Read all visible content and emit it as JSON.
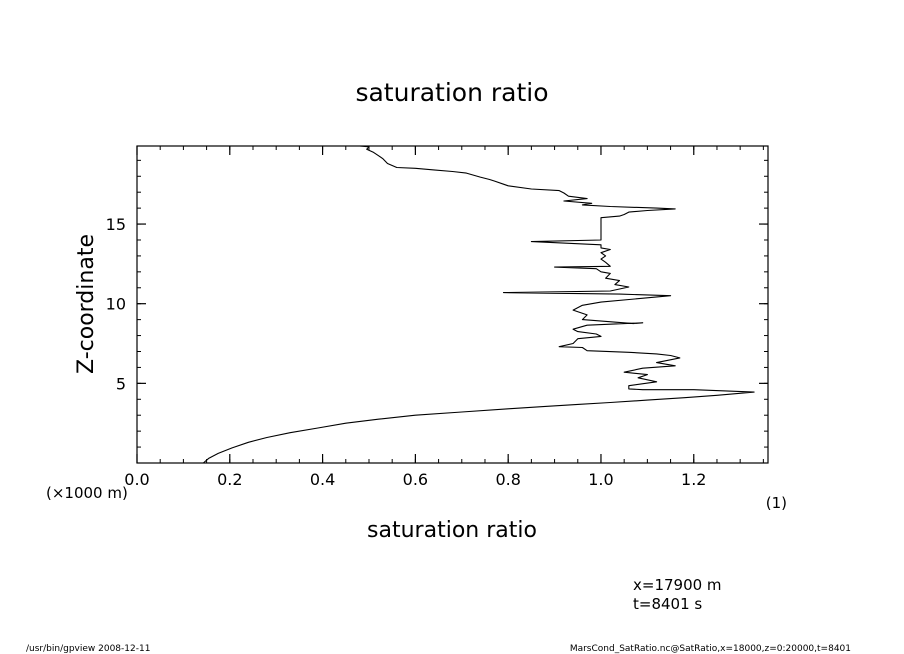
{
  "chart_data": {
    "type": "line",
    "title": "saturation ratio",
    "xlabel": "saturation ratio",
    "ylabel": "Z-coordinate",
    "x_unit": "(1)",
    "y_unit": "(×1000 m)",
    "xlim": [
      0.0,
      1.36
    ],
    "ylim": [
      0.0,
      19.9
    ],
    "x_ticks": [
      0.0,
      0.2,
      0.4,
      0.6,
      0.8,
      1.0,
      1.2
    ],
    "x_tick_labels": [
      "0.0",
      "0.2",
      "0.4",
      "0.6",
      "0.8",
      "1.0",
      "1.2"
    ],
    "y_ticks": [
      5,
      10,
      15
    ],
    "y_tick_labels": [
      "5",
      "10",
      "15"
    ],
    "x_minor_step": 0.05,
    "y_minor_step": 1,
    "grid": false,
    "series": [
      {
        "points": [
          [
            0.143,
            0.0
          ],
          [
            0.155,
            0.3
          ],
          [
            0.175,
            0.6
          ],
          [
            0.205,
            0.95
          ],
          [
            0.24,
            1.3
          ],
          [
            0.28,
            1.6
          ],
          [
            0.33,
            1.9
          ],
          [
            0.39,
            2.2
          ],
          [
            0.45,
            2.5
          ],
          [
            0.52,
            2.75
          ],
          [
            0.6,
            3.0
          ],
          [
            0.7,
            3.2
          ],
          [
            0.8,
            3.4
          ],
          [
            0.88,
            3.55
          ],
          [
            0.95,
            3.68
          ],
          [
            1.02,
            3.8
          ],
          [
            1.1,
            3.95
          ],
          [
            1.18,
            4.1
          ],
          [
            1.25,
            4.25
          ],
          [
            1.33,
            4.45
          ],
          [
            1.2,
            4.6
          ],
          [
            1.09,
            4.6
          ],
          [
            1.06,
            4.65
          ],
          [
            1.06,
            4.85
          ],
          [
            1.12,
            5.1
          ],
          [
            1.08,
            5.35
          ],
          [
            1.1,
            5.55
          ],
          [
            1.05,
            5.7
          ],
          [
            1.09,
            5.95
          ],
          [
            1.16,
            6.1
          ],
          [
            1.12,
            6.3
          ],
          [
            1.17,
            6.6
          ],
          [
            1.15,
            6.75
          ],
          [
            1.12,
            6.85
          ],
          [
            1.06,
            6.95
          ],
          [
            0.97,
            7.05
          ],
          [
            0.96,
            7.25
          ],
          [
            0.91,
            7.3
          ],
          [
            0.94,
            7.5
          ],
          [
            0.95,
            7.8
          ],
          [
            1.0,
            7.95
          ],
          [
            0.99,
            8.1
          ],
          [
            0.95,
            8.25
          ],
          [
            0.94,
            8.4
          ],
          [
            0.97,
            8.65
          ],
          [
            1.09,
            8.8
          ],
          [
            1.07,
            8.75
          ],
          [
            0.96,
            9.0
          ],
          [
            0.97,
            9.3
          ],
          [
            0.94,
            9.6
          ],
          [
            0.96,
            9.9
          ],
          [
            1.0,
            10.1
          ],
          [
            1.15,
            10.5
          ],
          [
            1.04,
            10.6
          ],
          [
            0.79,
            10.7
          ],
          [
            1.02,
            10.8
          ],
          [
            1.06,
            11.05
          ],
          [
            1.03,
            11.2
          ],
          [
            1.04,
            11.45
          ],
          [
            1.01,
            11.6
          ],
          [
            1.02,
            11.9
          ],
          [
            1.0,
            12.0
          ],
          [
            0.99,
            12.2
          ],
          [
            0.9,
            12.3
          ],
          [
            1.02,
            12.35
          ],
          [
            1.01,
            12.6
          ],
          [
            1.0,
            12.8
          ],
          [
            1.01,
            13.0
          ],
          [
            1.0,
            13.2
          ],
          [
            1.02,
            13.4
          ],
          [
            1.0,
            13.5
          ],
          [
            1.0,
            13.7
          ],
          [
            0.85,
            13.9
          ],
          [
            1.0,
            14.0
          ],
          [
            1.0,
            15.4
          ],
          [
            1.04,
            15.5
          ],
          [
            1.05,
            15.6
          ],
          [
            1.06,
            15.75
          ],
          [
            1.1,
            15.85
          ],
          [
            1.16,
            15.95
          ],
          [
            1.12,
            16.0
          ],
          [
            1.02,
            16.1
          ],
          [
            0.96,
            16.2
          ],
          [
            0.98,
            16.3
          ],
          [
            0.92,
            16.45
          ],
          [
            0.97,
            16.6
          ],
          [
            0.93,
            16.75
          ],
          [
            0.92,
            16.95
          ],
          [
            0.91,
            17.1
          ],
          [
            0.85,
            17.2
          ],
          [
            0.8,
            17.4
          ],
          [
            0.79,
            17.5
          ],
          [
            0.77,
            17.7
          ],
          [
            0.76,
            17.8
          ],
          [
            0.74,
            17.95
          ],
          [
            0.71,
            18.2
          ],
          [
            0.68,
            18.3
          ],
          [
            0.64,
            18.4
          ],
          [
            0.6,
            18.5
          ],
          [
            0.56,
            18.55
          ],
          [
            0.54,
            18.8
          ],
          [
            0.53,
            19.1
          ],
          [
            0.52,
            19.3
          ],
          [
            0.51,
            19.5
          ],
          [
            0.495,
            19.7
          ],
          [
            0.5,
            19.85
          ],
          [
            0.48,
            19.9
          ]
        ]
      }
    ],
    "annotations": {
      "info_lines": [
        "x=17900  m",
        "t=8401  s"
      ],
      "footer_left": "/usr/bin/gpview   2008-12-11",
      "footer_right": "MarsCond_SatRatio.nc@SatRatio,x=18000,z=0:20000,t=8401"
    }
  }
}
